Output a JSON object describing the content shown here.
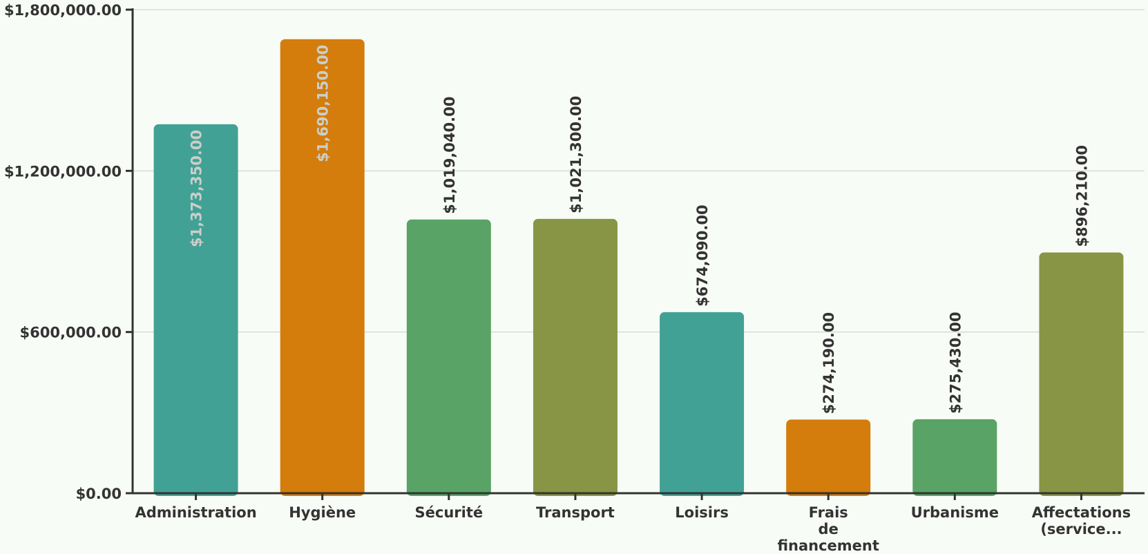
{
  "chart_data": {
    "type": "bar",
    "categories": [
      [
        "Administration"
      ],
      [
        "Hygiène"
      ],
      [
        "Sécurité"
      ],
      [
        "Transport"
      ],
      [
        "Loisirs"
      ],
      [
        "Frais",
        "de",
        "financement"
      ],
      [
        "Urbanisme"
      ],
      [
        "Affectations",
        "(service..."
      ]
    ],
    "values": [
      1373350,
      1690150,
      1019040,
      1021300,
      674090,
      274190,
      275430,
      896210
    ],
    "value_labels": [
      "$1,373,350.00",
      "$1,690,150.00",
      "$1,019,040.00",
      "$1,021,300.00",
      "$674,090.00",
      "$274,190.00",
      "$275,430.00",
      "$896,210.00"
    ],
    "bar_colors": [
      "#42a195",
      "#d47c0c",
      "#59a366",
      "#879545",
      "#42a195",
      "#d47c0c",
      "#59a366",
      "#879545"
    ],
    "label_inside": [
      true,
      true,
      false,
      false,
      false,
      false,
      false,
      false
    ],
    "inside_label_color": "#c9cfc9",
    "outside_label_color": "#333333",
    "y_ticks": [
      0,
      600000,
      1200000,
      1800000
    ],
    "y_tick_labels": [
      "$0.00",
      "$600,000.00",
      "$1,200,000.00",
      "$1,800,000.00"
    ],
    "ylim": [
      0,
      1800000
    ],
    "grid": true,
    "gridline_color": "#d6dcd6",
    "axis_color": "#333333",
    "title": "",
    "xlabel": "",
    "ylabel": ""
  }
}
